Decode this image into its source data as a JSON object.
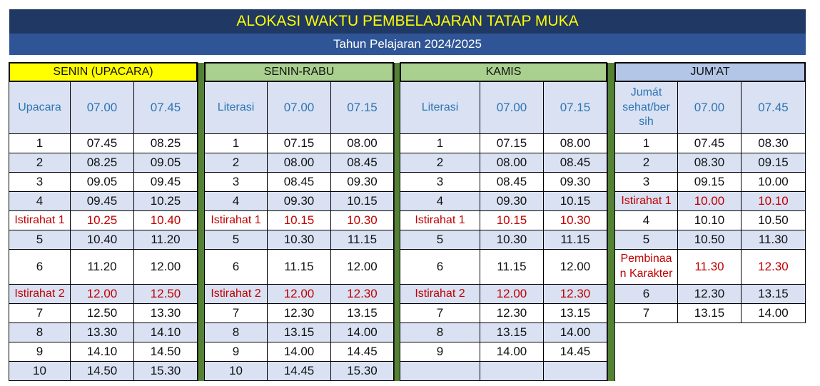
{
  "title": "ALOKASI WAKTU PEMBELAJARAN TATAP MUKA",
  "subtitle": "Tahun Pelajaran 2024/2025",
  "colors": {
    "title_bg": "#203864",
    "title_text": "#FFFF00",
    "subtitle_bg": "#2F5597",
    "separator": "#548235",
    "break_text": "#C00000",
    "header_text": "#2F75B5",
    "band": "#D9E1F2"
  },
  "tables": [
    {
      "day": "SENIN (UPACARA)",
      "day_bg": "#FFFF00",
      "sub": [
        "Upacara",
        "07.00",
        "07.45"
      ],
      "rows": [
        {
          "c": [
            "1",
            "07.45",
            "08.25"
          ]
        },
        {
          "c": [
            "2",
            "08.25",
            "09.05"
          ]
        },
        {
          "c": [
            "3",
            "09.05",
            "09.45"
          ]
        },
        {
          "c": [
            "4",
            "09.45",
            "10.25"
          ]
        },
        {
          "c": [
            "Istirahat 1",
            "10.25",
            "10.40"
          ],
          "break": true
        },
        {
          "c": [
            "5",
            "10.40",
            "11.20"
          ]
        },
        {
          "c": [
            "6",
            "11.20",
            "12.00"
          ]
        },
        {
          "c": [
            "Istirahat 2",
            "12.00",
            "12.50"
          ],
          "break": true
        },
        {
          "c": [
            "7",
            "12.50",
            "13.30"
          ]
        },
        {
          "c": [
            "8",
            "13.30",
            "14.10"
          ]
        },
        {
          "c": [
            "9",
            "14.10",
            "14.50"
          ]
        },
        {
          "c": [
            "10",
            "14.50",
            "15.30"
          ]
        }
      ]
    },
    {
      "day": "SENIN-RABU",
      "day_bg": "#A9D08E",
      "sub": [
        "Literasi",
        "07.00",
        "07.15"
      ],
      "rows": [
        {
          "c": [
            "1",
            "07.15",
            "08.00"
          ]
        },
        {
          "c": [
            "2",
            "08.00",
            "08.45"
          ]
        },
        {
          "c": [
            "3",
            "08.45",
            "09.30"
          ]
        },
        {
          "c": [
            "4",
            "09.30",
            "10.15"
          ]
        },
        {
          "c": [
            "Istirahat 1",
            "10.15",
            "10.30"
          ],
          "break": true
        },
        {
          "c": [
            "5",
            "10.30",
            "11.15"
          ]
        },
        {
          "c": [
            "6",
            "11.15",
            "12.00"
          ]
        },
        {
          "c": [
            "Istirahat 2",
            "12.00",
            "12.30"
          ],
          "break": true
        },
        {
          "c": [
            "7",
            "12.30",
            "13.15"
          ]
        },
        {
          "c": [
            "8",
            "13.15",
            "14.00"
          ]
        },
        {
          "c": [
            "9",
            "14.00",
            "14.45"
          ]
        },
        {
          "c": [
            "10",
            "14.45",
            "15.30"
          ]
        }
      ]
    },
    {
      "day": "KAMIS",
      "day_bg": "#A9D08E",
      "sub": [
        "Literasi",
        "07.00",
        "07.15"
      ],
      "rows": [
        {
          "c": [
            "1",
            "07.15",
            "08.00"
          ]
        },
        {
          "c": [
            "2",
            "08.00",
            "08.45"
          ]
        },
        {
          "c": [
            "3",
            "08.45",
            "09.30"
          ]
        },
        {
          "c": [
            "4",
            "09.30",
            "10.15"
          ]
        },
        {
          "c": [
            "Istirahat 1",
            "10.15",
            "10.30"
          ],
          "break": true
        },
        {
          "c": [
            "5",
            "10.30",
            "11.15"
          ]
        },
        {
          "c": [
            "6",
            "11.15",
            "12.00"
          ]
        },
        {
          "c": [
            "Istirahat 2",
            "12.00",
            "12.30"
          ],
          "break": true
        },
        {
          "c": [
            "7",
            "12.30",
            "13.15"
          ]
        },
        {
          "c": [
            "8",
            "13.15",
            "14.00"
          ]
        },
        {
          "c": [
            "9",
            "14.00",
            "14.45"
          ]
        },
        {
          "c": [
            "",
            "",
            ""
          ]
        }
      ]
    },
    {
      "day": "JUM'AT",
      "day_bg": "#B4C6E7",
      "sub": [
        "Jumát sehat/ber sih",
        "07.00",
        "07.45"
      ],
      "rows": [
        {
          "c": [
            "1",
            "07.45",
            "08.30"
          ]
        },
        {
          "c": [
            "2",
            "08.30",
            "09.15"
          ]
        },
        {
          "c": [
            "3",
            "09.15",
            "10.00"
          ]
        },
        {
          "c": [
            "Istirahat 1",
            "10.00",
            "10.10"
          ],
          "break": true
        },
        {
          "c": [
            "4",
            "10.10",
            "10.50"
          ]
        },
        {
          "c": [
            "5",
            "10.50",
            "11.30"
          ]
        },
        {
          "c": [
            "Pembinaa n Karakter",
            "11.30",
            "12.30"
          ],
          "break": true
        },
        {
          "c": [
            "6",
            "12.30",
            "13.15"
          ]
        },
        {
          "c": [
            "7",
            "13.15",
            "14.00"
          ]
        }
      ]
    }
  ]
}
